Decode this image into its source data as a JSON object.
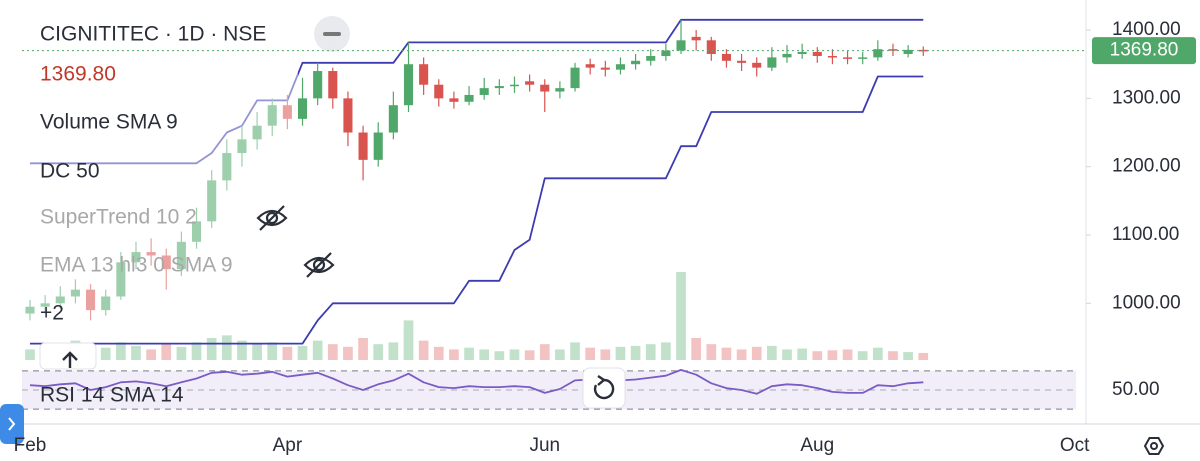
{
  "chart_data": {
    "type": "candlestick",
    "title": "CIGNITITEC · 1D · NSE",
    "last_price": {
      "value": 1369.8,
      "label": "1369.80"
    },
    "up_color": "#4fa86a",
    "down_color": "#d9534f",
    "categories": [
      "Feb",
      null,
      null,
      null,
      null,
      null,
      null,
      null,
      null,
      null,
      null,
      null,
      null,
      null,
      null,
      null,
      null,
      "Apr",
      null,
      null,
      null,
      null,
      null,
      null,
      null,
      null,
      null,
      null,
      null,
      null,
      null,
      null,
      null,
      null,
      "Jun",
      null,
      null,
      null,
      null,
      null,
      null,
      null,
      null,
      null,
      null,
      null,
      null,
      null,
      null,
      null,
      null,
      null,
      "Aug",
      null,
      null,
      null,
      null,
      null,
      null,
      null,
      null,
      null,
      null,
      null,
      null,
      null,
      null,
      null,
      null,
      "Oct"
    ],
    "open": [
      985,
      995,
      1000,
      1010,
      1020,
      990,
      1010,
      1060,
      1075,
      1070,
      1050,
      1090,
      1120,
      1180,
      1220,
      1240,
      1260,
      1290,
      1270,
      1300,
      1340,
      1300,
      1250,
      1210,
      1250,
      1290,
      1350,
      1320,
      1300,
      1295,
      1305,
      1315,
      1318,
      1325,
      1320,
      1310,
      1315,
      1350,
      1345,
      1342,
      1350,
      1355,
      1362,
      1370,
      1390,
      1385,
      1365,
      1355,
      1352,
      1345,
      1360,
      1365,
      1368,
      1362,
      1360,
      1358,
      1360,
      1372,
      1365,
      1371,
      null,
      null,
      null,
      null,
      null,
      null,
      null,
      null,
      null,
      null
    ],
    "high": [
      1005,
      1012,
      1025,
      1035,
      1028,
      1020,
      1075,
      1090,
      1095,
      1080,
      1105,
      1140,
      1195,
      1240,
      1260,
      1280,
      1300,
      1305,
      1330,
      1352,
      1345,
      1310,
      1260,
      1265,
      1310,
      1382,
      1360,
      1328,
      1310,
      1318,
      1330,
      1328,
      1332,
      1335,
      1328,
      1325,
      1352,
      1358,
      1355,
      1360,
      1365,
      1372,
      1380,
      1415,
      1400,
      1390,
      1372,
      1365,
      1360,
      1375,
      1378,
      1380,
      1375,
      1372,
      1370,
      1368,
      1385,
      1380,
      1378,
      1376,
      null,
      null,
      null,
      null,
      null,
      null,
      null,
      null,
      null,
      null
    ],
    "low": [
      975,
      985,
      992,
      1000,
      975,
      982,
      1005,
      1050,
      1055,
      1020,
      1040,
      1080,
      1110,
      1165,
      1200,
      1225,
      1245,
      1255,
      1260,
      1290,
      1285,
      1230,
      1180,
      1200,
      1240,
      1280,
      1305,
      1288,
      1285,
      1290,
      1298,
      1305,
      1308,
      1310,
      1280,
      1300,
      1310,
      1335,
      1332,
      1335,
      1342,
      1348,
      1355,
      1365,
      1370,
      1355,
      1345,
      1340,
      1332,
      1340,
      1352,
      1358,
      1352,
      1350,
      1350,
      1350,
      1355,
      1362,
      1360,
      1362,
      null,
      null,
      null,
      null,
      null,
      null,
      null,
      null,
      null,
      null
    ],
    "close": [
      995,
      1000,
      1010,
      1020,
      990,
      1010,
      1060,
      1075,
      1070,
      1050,
      1090,
      1120,
      1180,
      1220,
      1240,
      1260,
      1290,
      1270,
      1300,
      1340,
      1300,
      1250,
      1210,
      1250,
      1290,
      1350,
      1320,
      1300,
      1295,
      1305,
      1315,
      1318,
      1320,
      1320,
      1310,
      1315,
      1345,
      1345,
      1342,
      1350,
      1355,
      1362,
      1370,
      1385,
      1385,
      1365,
      1355,
      1352,
      1345,
      1360,
      1365,
      1368,
      1362,
      1360,
      1358,
      1360,
      1372,
      1370,
      1371,
      1369.8,
      null,
      null,
      null,
      null,
      null,
      null,
      null,
      null,
      null,
      null
    ],
    "ylim": [
      917,
      1444
    ],
    "yticks": [
      {
        "value": 1000,
        "label": "1000.00"
      },
      {
        "value": 1100,
        "label": "1100.00"
      },
      {
        "value": 1200,
        "label": "1200.00"
      },
      {
        "value": 1300,
        "label": "1300.00"
      },
      {
        "value": 1400,
        "label": "1400.00"
      }
    ],
    "volume": {
      "name": "Volume SMA 9",
      "vlim": [
        0,
        100
      ],
      "values": [
        12,
        15,
        10,
        22,
        18,
        14,
        20,
        16,
        12,
        18,
        15,
        20,
        25,
        28,
        22,
        18,
        20,
        15,
        16,
        22,
        18,
        15,
        25,
        18,
        20,
        45,
        22,
        15,
        12,
        14,
        12,
        10,
        12,
        11,
        18,
        12,
        20,
        14,
        12,
        15,
        16,
        18,
        20,
        100,
        25,
        18,
        14,
        12,
        15,
        16,
        12,
        13,
        10,
        11,
        12,
        10,
        14,
        10,
        9,
        8,
        null,
        null,
        null,
        null,
        null,
        null,
        null,
        null,
        null,
        null
      ]
    },
    "donchian": {
      "name": "DC 50",
      "color": "#3c3cb0",
      "upper": [
        1205,
        1205,
        1205,
        1205,
        1205,
        1205,
        1205,
        1205,
        1205,
        1205,
        1205,
        1205,
        1220,
        1250,
        1260,
        1297,
        1297,
        1297,
        1352,
        1352,
        1352,
        1352,
        1352,
        1352,
        1352,
        1382,
        1382,
        1382,
        1382,
        1382,
        1382,
        1382,
        1382,
        1382,
        1382,
        1382,
        1382,
        1382,
        1382,
        1382,
        1382,
        1382,
        1382,
        1415,
        1415,
        1415,
        1415,
        1415,
        1415,
        1415,
        1415,
        1415,
        1415,
        1415,
        1415,
        1415,
        1415,
        1415,
        1415,
        1415,
        null,
        null,
        null,
        null,
        null,
        null,
        null,
        null,
        null,
        null
      ],
      "lower": [
        941,
        941,
        941,
        941,
        941,
        941,
        941,
        941,
        941,
        941,
        941,
        941,
        941,
        941,
        941,
        941,
        941,
        941,
        941,
        975,
        1000,
        1000,
        1000,
        1000,
        1000,
        1000,
        1000,
        1000,
        1000,
        1033,
        1033,
        1033,
        1078,
        1093,
        1183,
        1183,
        1183,
        1183,
        1183,
        1183,
        1183,
        1183,
        1183,
        1230,
        1230,
        1280,
        1280,
        1280,
        1280,
        1280,
        1280,
        1280,
        1280,
        1280,
        1280,
        1280,
        1332,
        1332,
        1332,
        1332,
        null,
        null,
        null,
        null,
        null,
        null,
        null,
        null,
        null,
        null
      ]
    },
    "hidden_indicators": [
      "SuperTrend 10 2",
      "EMA 13 hl3 0 SMA 9"
    ],
    "more_indicators": "+2",
    "rsi": {
      "name": "RSI 14 SMA 14",
      "color": "#7b5bc4",
      "ylim": [
        27,
        73
      ],
      "bands": [
        30,
        70
      ],
      "yticks": [
        {
          "value": 50,
          "label": "50.00"
        }
      ],
      "values": [
        55,
        54,
        56,
        57,
        50,
        53,
        58,
        59,
        57,
        54,
        58,
        62,
        68,
        69,
        66,
        67,
        69,
        64,
        66,
        68,
        62,
        55,
        50,
        56,
        60,
        67,
        58,
        53,
        52,
        54,
        53,
        53,
        54,
        53,
        47,
        51,
        60,
        61,
        59,
        60,
        61,
        63,
        65,
        71,
        66,
        57,
        52,
        50,
        46,
        54,
        56,
        55,
        52,
        48,
        47,
        47,
        55,
        54,
        57,
        58,
        null,
        null,
        null,
        null,
        null,
        null,
        null,
        null,
        null,
        null
      ]
    }
  }
}
